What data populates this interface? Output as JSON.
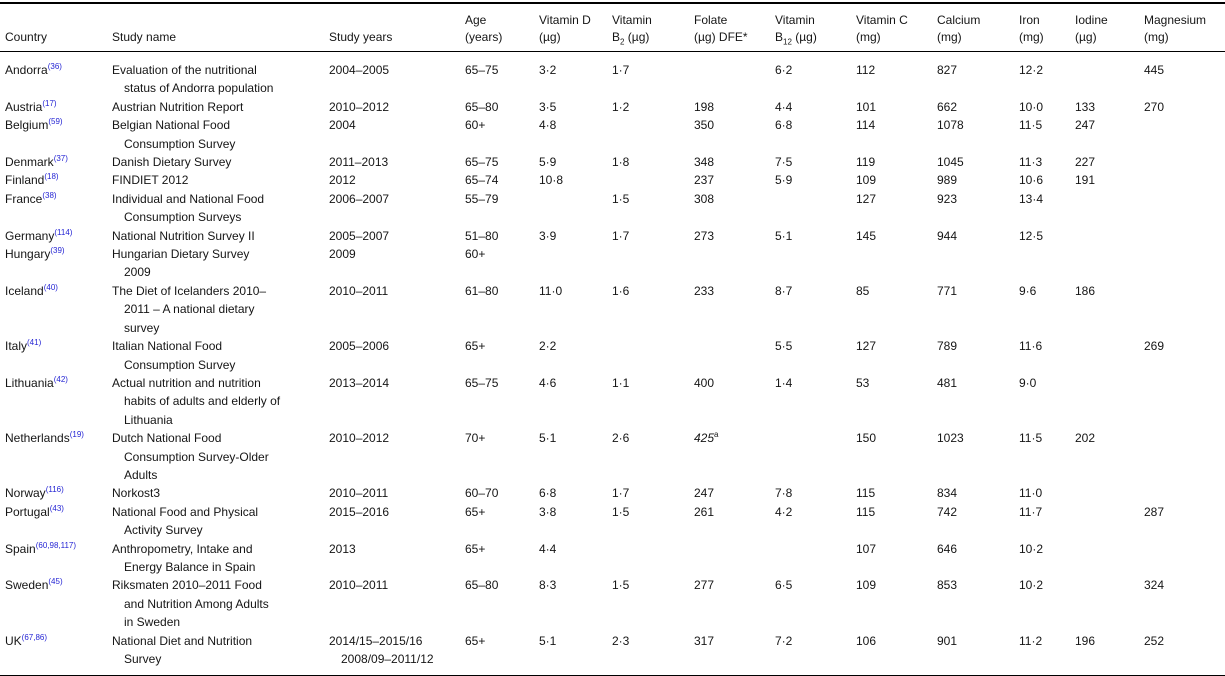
{
  "colors": {
    "reference_link": "#2525d4",
    "text": "#151515",
    "rule": "#000000",
    "background": "#ffffff"
  },
  "chart_data": {
    "type": "table",
    "columns": [
      {
        "id": "country",
        "label": "Country"
      },
      {
        "id": "study_name",
        "label": "Study name"
      },
      {
        "id": "study_years",
        "label": "Study years"
      },
      {
        "id": "age",
        "label": "Age\n(years)"
      },
      {
        "id": "vitamin_d",
        "label": "Vitamin D\n(µg)"
      },
      {
        "id": "vitamin_b2",
        "label": "Vitamin\nB~2~ (µg)"
      },
      {
        "id": "folate",
        "label": "Folate\n(µg) DFE*"
      },
      {
        "id": "vitamin_b12",
        "label": "Vitamin\nB~12~ (µg)"
      },
      {
        "id": "vitamin_c",
        "label": "Vitamin C\n(mg)"
      },
      {
        "id": "calcium",
        "label": "Calcium\n(mg)"
      },
      {
        "id": "iron",
        "label": "Iron\n(mg)"
      },
      {
        "id": "iodine",
        "label": "Iodine\n(µg)"
      },
      {
        "id": "magnesium",
        "label": "Magnesium\n(mg)"
      }
    ],
    "rows": [
      [
        "Andorra^(36)^",
        "Evaluation of the nutritional\nstatus of Andorra population",
        "2004–2005",
        "65–75",
        "3·2",
        "1·7",
        "",
        "6·2",
        "112",
        "827",
        "12·2",
        "",
        "445"
      ],
      [
        "Austria^(17)^",
        "Austrian Nutrition Report",
        "2010–2012",
        "65–80",
        "3·5",
        "1·2",
        "198",
        "4·4",
        "101",
        "662",
        "10·0",
        "133",
        "270"
      ],
      [
        "Belgium^(59)^",
        "Belgian National Food\nConsumption Survey",
        "2004",
        "60+",
        "4·8",
        "",
        "350",
        "6·8",
        "114",
        "1078",
        "11·5",
        "247",
        ""
      ],
      [
        "Denmark^(37)^",
        "Danish Dietary Survey",
        "2011–2013",
        "65–75",
        "5·9",
        "1·8",
        "348",
        "7·5",
        "119",
        "1045",
        "11·3",
        "227",
        ""
      ],
      [
        "Finland^(18)^",
        "FINDIET 2012",
        "2012",
        "65–74",
        "10·8",
        "",
        "237",
        "5·9",
        "109",
        "989",
        "10·6",
        "191",
        ""
      ],
      [
        "France^(38)^",
        "Individual and National Food\nConsumption Surveys",
        "2006–2007",
        "55–79",
        "",
        "1·5",
        "308",
        "",
        "127",
        "923",
        "13·4",
        "",
        ""
      ],
      [
        "Germany^(114)^",
        "National Nutrition Survey II",
        "2005–2007",
        "51–80",
        "3·9",
        "1·7",
        "273",
        "5·1",
        "145",
        "944",
        "12·5",
        "",
        ""
      ],
      [
        "Hungary^(39)^",
        "Hungarian Dietary Survey\n2009",
        "2009",
        "60+",
        "",
        "",
        "",
        "",
        "",
        "",
        "",
        "",
        ""
      ],
      [
        "Iceland^(40)^",
        "The Diet of Icelanders 2010–\n2011 – A national dietary\nsurvey",
        "2010–2011",
        "61–80",
        "11·0",
        "1·6",
        "233",
        "8·7",
        "85",
        "771",
        "9·6",
        "186",
        ""
      ],
      [
        "Italy^(41)^",
        "Italian National Food\nConsumption Survey",
        "2005–2006",
        "65+",
        "2·2",
        "",
        "",
        "5·5",
        "127",
        "789",
        "11·6",
        "",
        "269"
      ],
      [
        "Lithuania^(42)^",
        "Actual nutrition and nutrition\nhabits of adults and elderly of\nLithuania",
        "2013–2014",
        "65–75",
        "4·6",
        "1·1",
        "400",
        "1·4",
        "53",
        "481",
        "9·0",
        "",
        ""
      ],
      [
        "Netherlands^(19)^",
        "Dutch National Food\nConsumption Survey-Older\nAdults",
        "2010–2012",
        "70+",
        "5·1",
        "2·6",
        "*425*^a^",
        "",
        "150",
        "1023",
        "11·5",
        "202",
        ""
      ],
      [
        "Norway^(116)^",
        "Norkost3",
        "2010–2011",
        "60–70",
        "6·8",
        "1·7",
        "247",
        "7·8",
        "115",
        "834",
        "11·0",
        "",
        ""
      ],
      [
        "Portugal^(43)^",
        "National Food and Physical\nActivity Survey",
        "2015–2016",
        "65+",
        "3·8",
        "1·5",
        "261",
        "4·2",
        "115",
        "742",
        "11·7",
        "",
        "287"
      ],
      [
        "Spain^(60,98,117)^",
        "Anthropometry, Intake and\nEnergy Balance in Spain",
        "2013",
        "65+",
        "4·4",
        "",
        "",
        "",
        "107",
        "646",
        "10·2",
        "",
        ""
      ],
      [
        "Sweden^(45)^",
        "Riksmaten 2010–2011 Food\nand Nutrition Among Adults\nin Sweden",
        "2010–2011",
        "65–80",
        "8·3",
        "1·5",
        "277",
        "6·5",
        "109",
        "853",
        "10·2",
        "",
        "324"
      ],
      [
        "UK^(67,86)^",
        "National Diet and Nutrition\nSurvey",
        "2014/15–2015/16\n2008/09–2011/12",
        "65+",
        "5·1",
        "2·3",
        "317",
        "7·2",
        "106",
        "901",
        "11·2",
        "196",
        "252"
      ]
    ]
  }
}
